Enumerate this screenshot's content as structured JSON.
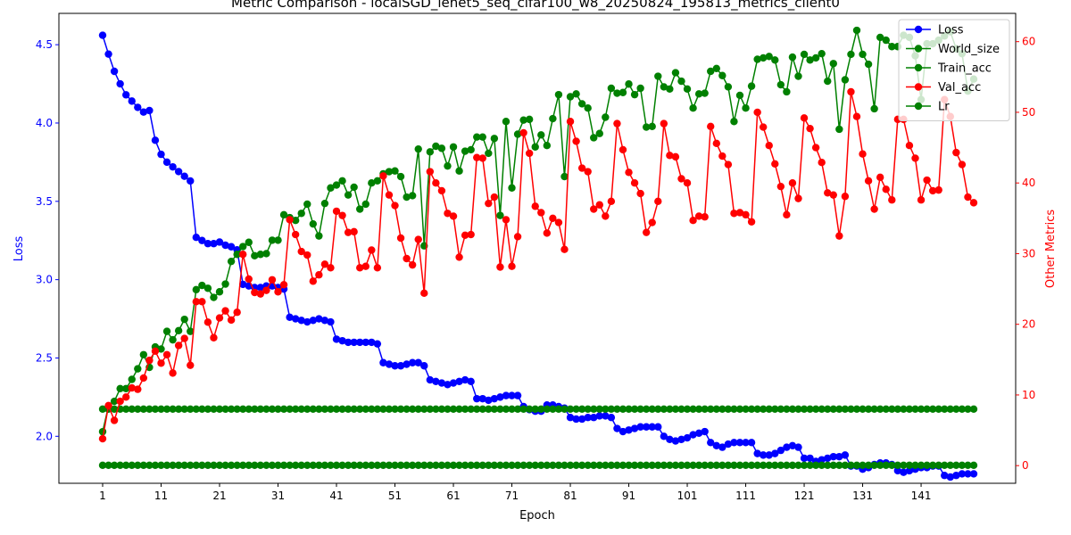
{
  "chart_data": {
    "type": "line",
    "title": "Metric Comparison - localSGD_lenet5_seq_cifar100_w8_20250824_195813_metrics_client0",
    "xlabel": "Epoch",
    "ylabel_left": "Loss",
    "ylabel_right": "Other Metrics",
    "xlim": [
      1,
      150
    ],
    "x_ticks": [
      1,
      11,
      21,
      31,
      41,
      51,
      61,
      71,
      81,
      91,
      101,
      111,
      121,
      131,
      141
    ],
    "ylim_left": [
      1.7,
      4.7
    ],
    "y_ticks_left": [
      "2.0",
      "2.5",
      "3.0",
      "3.5",
      "4.0",
      "4.5"
    ],
    "ylim_right": [
      -2.5,
      64
    ],
    "y_ticks_right": [
      "0",
      "10",
      "20",
      "30",
      "40",
      "50",
      "60"
    ],
    "grid": false,
    "legend_position": "top-right",
    "colors": {
      "left_axis": "#0000ff",
      "right_axis": "#ff0000",
      "spine": "#000000"
    },
    "series": [
      {
        "name": "Loss",
        "axis": "left",
        "color": "#0000ff",
        "values": [
          4.56,
          4.44,
          4.33,
          4.25,
          4.18,
          4.14,
          4.1,
          4.07,
          4.08,
          3.89,
          3.8,
          3.75,
          3.72,
          3.69,
          3.66,
          3.63,
          3.27,
          3.25,
          3.23,
          3.23,
          3.24,
          3.22,
          3.21,
          3.19,
          2.97,
          2.96,
          2.95,
          2.95,
          2.96,
          2.96,
          2.95,
          2.94,
          2.76,
          2.75,
          2.74,
          2.73,
          2.74,
          2.75,
          2.74,
          2.73,
          2.62,
          2.61,
          2.6,
          2.6,
          2.6,
          2.6,
          2.6,
          2.59,
          2.47,
          2.46,
          2.45,
          2.45,
          2.46,
          2.47,
          2.47,
          2.45,
          2.36,
          2.35,
          2.34,
          2.33,
          2.34,
          2.35,
          2.36,
          2.35,
          2.24,
          2.24,
          2.23,
          2.24,
          2.25,
          2.26,
          2.26,
          2.26,
          2.19,
          2.17,
          2.16,
          2.16,
          2.2,
          2.2,
          2.19,
          2.18,
          2.12,
          2.11,
          2.11,
          2.12,
          2.12,
          2.13,
          2.13,
          2.12,
          2.05,
          2.03,
          2.04,
          2.05,
          2.06,
          2.06,
          2.06,
          2.06,
          2.0,
          1.98,
          1.97,
          1.98,
          1.99,
          2.01,
          2.02,
          2.03,
          1.96,
          1.94,
          1.93,
          1.95,
          1.96,
          1.96,
          1.96,
          1.96,
          1.89,
          1.88,
          1.88,
          1.89,
          1.91,
          1.93,
          1.94,
          1.93,
          1.86,
          1.86,
          1.84,
          1.85,
          1.86,
          1.87,
          1.87,
          1.88,
          1.81,
          1.81,
          1.79,
          1.8,
          1.82,
          1.83,
          1.83,
          1.82,
          1.78,
          1.77,
          1.78,
          1.79,
          1.8,
          1.8,
          1.81,
          1.81,
          1.75,
          1.74,
          1.75,
          1.76,
          1.76,
          1.76
        ]
      },
      {
        "name": "World_size",
        "axis": "right",
        "color": "#008000",
        "constant": 8,
        "count": 150
      },
      {
        "name": "Train_acc",
        "axis": "right",
        "color": "#008000",
        "values": [
          4.8,
          8.4,
          9.1,
          10.9,
          10.9,
          12.2,
          13.7,
          15.7,
          13.9,
          16.8,
          16.5,
          19.0,
          17.8,
          19.1,
          20.7,
          19.0,
          24.9,
          25.5,
          25.1,
          23.8,
          24.6,
          25.7,
          28.9,
          29.9,
          31.0,
          31.6,
          29.7,
          29.9,
          30.0,
          31.9,
          31.9,
          35.5,
          35.1,
          34.7,
          35.7,
          37.0,
          34.2,
          32.5,
          37.1,
          39.3,
          39.7,
          40.3,
          38.3,
          39.4,
          36.3,
          37.0,
          40.0,
          40.3,
          41.3,
          41.6,
          41.7,
          40.9,
          38.0,
          38.2,
          44.8,
          31.1,
          44.4,
          45.2,
          44.9,
          42.4,
          45.1,
          41.7,
          44.5,
          44.7,
          46.5,
          46.5,
          44.2,
          46.3,
          35.4,
          48.7,
          39.3,
          46.9,
          48.9,
          49.0,
          45.1,
          46.8,
          45.3,
          49.1,
          52.5,
          40.9,
          52.2,
          52.6,
          51.2,
          50.6,
          46.4,
          47.0,
          49.3,
          53.4,
          52.7,
          52.8,
          54.0,
          52.5,
          53.4,
          47.9,
          48.0,
          55.1,
          53.6,
          53.3,
          55.6,
          54.4,
          53.3,
          50.6,
          52.6,
          52.7,
          55.8,
          56.2,
          55.2,
          53.6,
          48.7,
          52.4,
          50.6,
          53.7,
          57.5,
          57.7,
          57.9,
          57.4,
          53.9,
          52.9,
          57.8,
          55.1,
          58.2,
          57.4,
          57.7,
          58.3,
          54.4,
          56.9,
          47.6,
          54.6,
          58.2,
          61.6,
          58.2,
          56.8,
          50.5,
          60.6,
          60.2,
          59.3,
          59.3,
          60.9,
          60.6,
          58.0,
          51.8,
          59.7,
          59.7,
          60.2,
          60.8,
          61.4,
          59.0,
          58.3,
          53.0,
          54.7
        ]
      },
      {
        "name": "Val_acc",
        "axis": "right",
        "color": "#ff0000",
        "values": [
          3.8,
          8.5,
          6.4,
          9.1,
          9.7,
          11.0,
          10.8,
          12.4,
          14.9,
          16.2,
          14.5,
          15.7,
          13.1,
          17.0,
          18.0,
          14.2,
          23.2,
          23.2,
          20.3,
          18.1,
          20.9,
          21.9,
          20.6,
          21.7,
          29.9,
          26.4,
          24.5,
          24.3,
          24.8,
          26.3,
          24.6,
          25.6,
          34.8,
          32.7,
          30.3,
          29.8,
          26.1,
          27.0,
          28.5,
          28.0,
          36.0,
          35.4,
          33.0,
          33.1,
          28.0,
          28.2,
          30.5,
          28.0,
          41.0,
          38.3,
          36.8,
          32.2,
          29.3,
          28.4,
          32.0,
          24.4,
          41.6,
          40.0,
          38.9,
          35.7,
          35.3,
          29.5,
          32.6,
          32.7,
          43.6,
          43.5,
          37.1,
          38.0,
          28.1,
          34.8,
          28.2,
          32.4,
          47.1,
          44.2,
          36.7,
          35.8,
          32.9,
          35.0,
          34.4,
          30.6,
          48.7,
          45.9,
          42.1,
          41.6,
          36.3,
          36.9,
          35.3,
          37.4,
          48.4,
          44.7,
          41.5,
          40.0,
          38.5,
          33.0,
          34.4,
          37.4,
          48.4,
          43.9,
          43.7,
          40.6,
          40.0,
          34.7,
          35.3,
          35.2,
          48.0,
          45.6,
          43.8,
          42.6,
          35.7,
          35.8,
          35.5,
          34.5,
          50.0,
          47.9,
          45.3,
          42.7,
          39.5,
          35.5,
          40.0,
          37.8,
          49.2,
          47.7,
          45.0,
          42.9,
          38.6,
          38.3,
          32.5,
          38.1,
          52.9,
          49.4,
          44.1,
          40.3,
          36.3,
          40.8,
          39.1,
          37.6,
          49.0,
          49.0,
          45.3,
          43.5,
          37.6,
          40.4,
          38.9,
          39.0,
          51.8,
          49.4,
          44.3,
          42.6,
          38.0,
          37.2
        ]
      },
      {
        "name": "Lr",
        "axis": "right",
        "color": "#008000",
        "constant": 0.05,
        "count": 150
      }
    ]
  }
}
